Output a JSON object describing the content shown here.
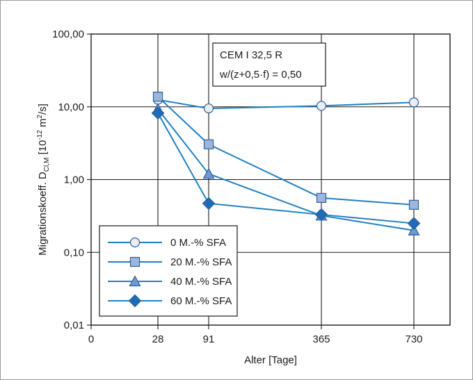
{
  "chart_data": {
    "type": "line",
    "x_tick_labels": [
      "0",
      "28",
      "91",
      "365",
      "730"
    ],
    "x_categories": [
      "28",
      "91",
      "365",
      "730"
    ],
    "y_scale": "log",
    "ylim": [
      0.01,
      100
    ],
    "y_tick_values": [
      0.01,
      0.1,
      1,
      10,
      100
    ],
    "y_tick_labels": [
      "0,01",
      "0,10",
      "1,00",
      "10,00",
      "100,00"
    ],
    "xlabel": "Alter [Tage]",
    "ylabel": {
      "main": "Migrationskoeff. D",
      "subscript": "Cl,M",
      "unit_open": "  [10",
      "unit_exp": "-12",
      "unit_mid": " m",
      "unit_exp2": "2",
      "unit_close": "/s]"
    },
    "grid": true,
    "annotation": {
      "line1": "CEM I 32,5 R",
      "line2": "w/(z+0,5·f) = 0,50"
    },
    "legend_position": "bottom-left",
    "line_color": "#1f7fc0",
    "series": [
      {
        "name": "0 M.-% SFA",
        "marker": "circle",
        "fill": "#e8edf6",
        "values": [
          12.5,
          9.5,
          10.3,
          11.5
        ]
      },
      {
        "name": "20 M.-% SFA",
        "marker": "square",
        "fill": "#9eb6dd",
        "values": [
          13.8,
          3.05,
          0.56,
          0.45
        ]
      },
      {
        "name": "40 M.-% SFA",
        "marker": "triangle",
        "fill": "#6f99d3",
        "values": [
          9.3,
          1.2,
          0.32,
          0.2
        ]
      },
      {
        "name": "60 M.-% SFA",
        "marker": "diamond",
        "fill": "#1c6cb9",
        "values": [
          8.2,
          0.47,
          0.33,
          0.25
        ]
      }
    ]
  }
}
